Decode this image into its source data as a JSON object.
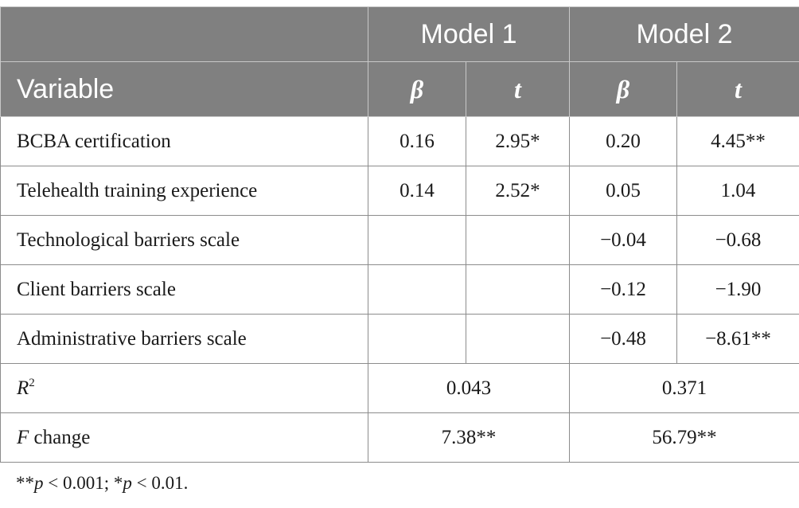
{
  "header": {
    "model1": "Model 1",
    "model2": "Model 2",
    "variable": "Variable",
    "beta": "β",
    "t": "t"
  },
  "rows": [
    {
      "label": "BCBA certification",
      "m1_beta": "0.16",
      "m1_t": "2.95*",
      "m2_beta": "0.20",
      "m2_t": "4.45**"
    },
    {
      "label": "Telehealth training experience",
      "m1_beta": "0.14",
      "m1_t": "2.52*",
      "m2_beta": "0.05",
      "m2_t": "1.04"
    },
    {
      "label": "Technological barriers scale",
      "m1_beta": "",
      "m1_t": "",
      "m2_beta": "−0.04",
      "m2_t": "−0.68"
    },
    {
      "label": "Client barriers scale",
      "m1_beta": "",
      "m1_t": "",
      "m2_beta": "−0.12",
      "m2_t": "−1.90"
    },
    {
      "label": "Administrative barriers scale",
      "m1_beta": "",
      "m1_t": "",
      "m2_beta": "−0.48",
      "m2_t": "−8.61**"
    }
  ],
  "r2": {
    "label": "R",
    "sup": "2",
    "m1": "0.043",
    "m2": "0.371"
  },
  "fchange": {
    "label_italic": "F",
    "label_rest": " change",
    "m1": "7.38**",
    "m2": "56.79**"
  },
  "footnote": {
    "part1": "**",
    "p1": "p",
    "part2": " < 0.001; *",
    "p2": "p",
    "part3": " < 0.01."
  }
}
